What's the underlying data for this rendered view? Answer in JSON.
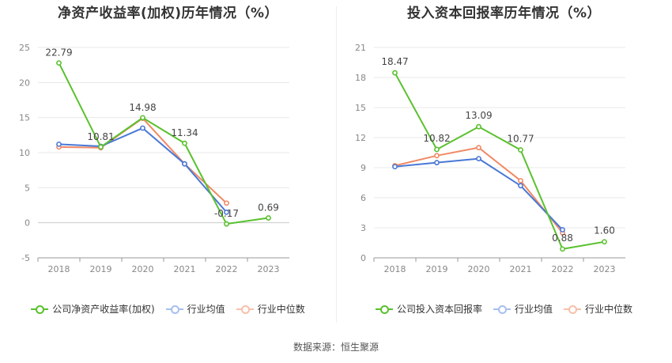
{
  "source_label": "数据来源：恒生聚源",
  "colors": {
    "company": "#5ac12e",
    "avg": "#4a78d6",
    "median": "#f08a66"
  },
  "chart_data": [
    {
      "type": "line",
      "title": "净资产收益率(加权)历年情况（%）",
      "categories": [
        "2018",
        "2019",
        "2020",
        "2021",
        "2022",
        "2023"
      ],
      "ylim": [
        -5,
        25
      ],
      "yticks": [
        -5,
        0,
        5,
        10,
        15,
        20,
        25
      ],
      "grid": true,
      "legend_position": "bottom",
      "series": [
        {
          "name": "公司净资产收益率(加权)",
          "color_key": "company",
          "values": [
            22.79,
            10.81,
            14.98,
            11.34,
            -0.17,
            0.69
          ],
          "labels": [
            "22.79",
            "10.81",
            "14.98",
            "11.34",
            "-0.17",
            "0.69"
          ]
        },
        {
          "name": "行业均值",
          "color_key": "avg",
          "values": [
            11.2,
            10.9,
            13.5,
            8.4,
            1.5,
            null
          ]
        },
        {
          "name": "行业中位数",
          "color_key": "median",
          "values": [
            10.8,
            10.7,
            14.9,
            8.4,
            2.8,
            null
          ]
        }
      ]
    },
    {
      "type": "line",
      "title": "投入资本回报率历年情况（%）",
      "categories": [
        "2018",
        "2019",
        "2020",
        "2021",
        "2022",
        "2023"
      ],
      "ylim": [
        0,
        21
      ],
      "yticks": [
        0,
        3,
        6,
        9,
        12,
        15,
        18,
        21
      ],
      "grid": true,
      "legend_position": "bottom",
      "series": [
        {
          "name": "公司投入资本回报率",
          "color_key": "company",
          "values": [
            18.47,
            10.82,
            13.09,
            10.77,
            0.88,
            1.6
          ],
          "labels": [
            "18.47",
            "10.82",
            "13.09",
            "10.77",
            "0.88",
            "1.60"
          ]
        },
        {
          "name": "行业均值",
          "color_key": "avg",
          "values": [
            9.1,
            9.5,
            9.9,
            7.2,
            2.8,
            null
          ]
        },
        {
          "name": "行业中位数",
          "color_key": "median",
          "values": [
            9.2,
            10.2,
            11.0,
            7.7,
            2.5,
            null
          ]
        }
      ]
    }
  ]
}
